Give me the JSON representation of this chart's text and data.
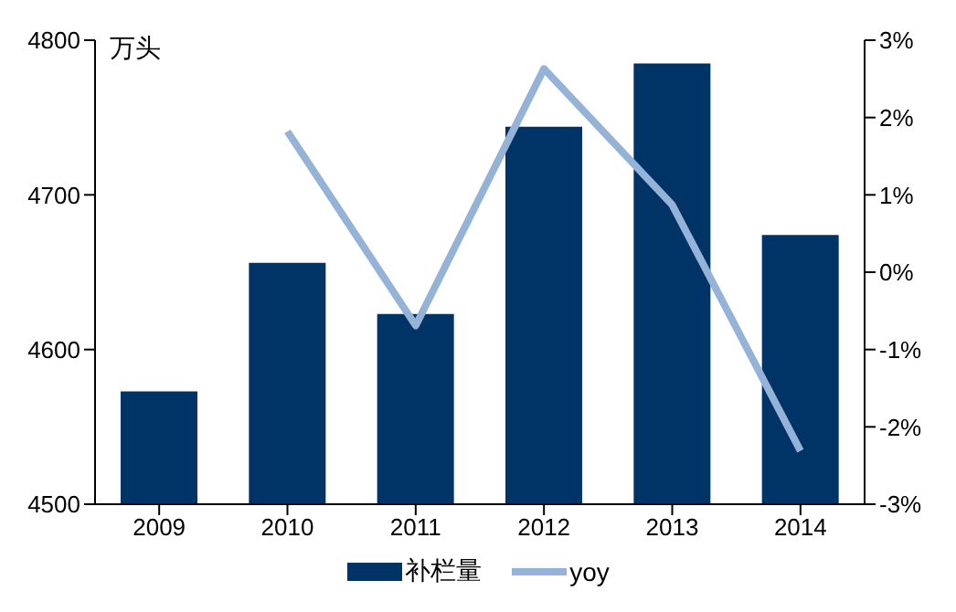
{
  "chart_data": {
    "type": "bar",
    "ylabel": "万头",
    "categories": [
      "2009",
      "2010",
      "2011",
      "2012",
      "2013",
      "2014"
    ],
    "series": [
      {
        "name": "补栏量",
        "color": "#003366",
        "values": [
          4573,
          4656,
          4623,
          4744,
          4785,
          4674
        ]
      },
      {
        "name": "yoy",
        "type": "line",
        "axis": "y2",
        "color": "#95b3d7",
        "values": [
          null,
          1.82,
          -0.69,
          2.63,
          0.87,
          -2.31
        ]
      }
    ],
    "ylim": [
      4500,
      4800
    ],
    "yticks": [
      4500,
      4600,
      4700,
      4800
    ],
    "y2lim": [
      -3,
      3
    ],
    "y2ticks": [
      {
        "value": -3,
        "label": "-3%"
      },
      {
        "value": -2,
        "label": "-2%"
      },
      {
        "value": -1,
        "label": "-1%"
      },
      {
        "value": 0,
        "label": "0%"
      },
      {
        "value": 1,
        "label": "1%"
      },
      {
        "value": 2,
        "label": "2%"
      },
      {
        "value": 3,
        "label": "3%"
      }
    ],
    "grid": false,
    "legend": "bottom",
    "marker": "none"
  }
}
